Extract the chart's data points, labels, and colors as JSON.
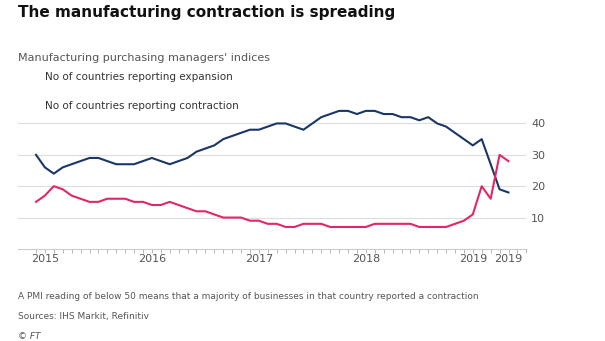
{
  "title": "The manufacturing contraction is spreading",
  "subtitle": "Manufacturing purchasing managers' indices",
  "footnote": "A PMI reading of below 50 means that a majority of businesses in that country reported a contraction",
  "sources": "Sources: IHS Markit, Refinitiv",
  "copyright": "© FT",
  "legend_expansion": "No of countries reporting expansion",
  "legend_contraction": "No of countries reporting contraction",
  "color_expansion": "#1a3668",
  "color_contraction": "#e0276a",
  "background_color": "#ffffff",
  "ylim": [
    0,
    50
  ],
  "yticks": [
    10,
    20,
    30,
    40
  ],
  "xlim": [
    2014.75,
    2019.5
  ],
  "expansion_x": [
    2014.917,
    2015.0,
    2015.083,
    2015.167,
    2015.25,
    2015.333,
    2015.417,
    2015.5,
    2015.583,
    2015.667,
    2015.75,
    2015.833,
    2015.917,
    2016.0,
    2016.083,
    2016.167,
    2016.25,
    2016.333,
    2016.417,
    2016.5,
    2016.583,
    2016.667,
    2016.75,
    2016.833,
    2016.917,
    2017.0,
    2017.083,
    2017.167,
    2017.25,
    2017.333,
    2017.417,
    2017.5,
    2017.583,
    2017.667,
    2017.75,
    2017.833,
    2017.917,
    2018.0,
    2018.083,
    2018.167,
    2018.25,
    2018.333,
    2018.417,
    2018.5,
    2018.583,
    2018.667,
    2018.75,
    2018.833,
    2018.917,
    2019.0,
    2019.083,
    2019.167,
    2019.25,
    2019.333
  ],
  "expansion_y": [
    30,
    26,
    24,
    26,
    27,
    28,
    29,
    29,
    28,
    27,
    27,
    27,
    28,
    29,
    28,
    27,
    28,
    29,
    31,
    32,
    33,
    35,
    36,
    37,
    38,
    38,
    39,
    40,
    40,
    39,
    38,
    40,
    42,
    43,
    44,
    44,
    43,
    44,
    44,
    43,
    43,
    42,
    42,
    41,
    42,
    40,
    39,
    37,
    35,
    33,
    35,
    27,
    19,
    18
  ],
  "contraction_x": [
    2014.917,
    2015.0,
    2015.083,
    2015.167,
    2015.25,
    2015.333,
    2015.417,
    2015.5,
    2015.583,
    2015.667,
    2015.75,
    2015.833,
    2015.917,
    2016.0,
    2016.083,
    2016.167,
    2016.25,
    2016.333,
    2016.417,
    2016.5,
    2016.583,
    2016.667,
    2016.75,
    2016.833,
    2016.917,
    2017.0,
    2017.083,
    2017.167,
    2017.25,
    2017.333,
    2017.417,
    2017.5,
    2017.583,
    2017.667,
    2017.75,
    2017.833,
    2017.917,
    2018.0,
    2018.083,
    2018.167,
    2018.25,
    2018.333,
    2018.417,
    2018.5,
    2018.583,
    2018.667,
    2018.75,
    2018.833,
    2018.917,
    2019.0,
    2019.083,
    2019.167,
    2019.25,
    2019.333
  ],
  "contraction_y": [
    15,
    17,
    20,
    19,
    17,
    16,
    15,
    15,
    16,
    16,
    16,
    15,
    15,
    14,
    14,
    15,
    14,
    13,
    12,
    12,
    11,
    10,
    10,
    10,
    9,
    9,
    8,
    8,
    7,
    7,
    8,
    8,
    8,
    7,
    7,
    7,
    7,
    7,
    8,
    8,
    8,
    8,
    8,
    7,
    7,
    7,
    7,
    8,
    9,
    11,
    20,
    16,
    30,
    28
  ],
  "year_ticks": [
    2015,
    2016,
    2017,
    2018,
    2019,
    2019.333
  ],
  "year_labels": [
    "2015",
    "2016",
    "2017",
    "2018",
    "2019",
    "2019"
  ]
}
